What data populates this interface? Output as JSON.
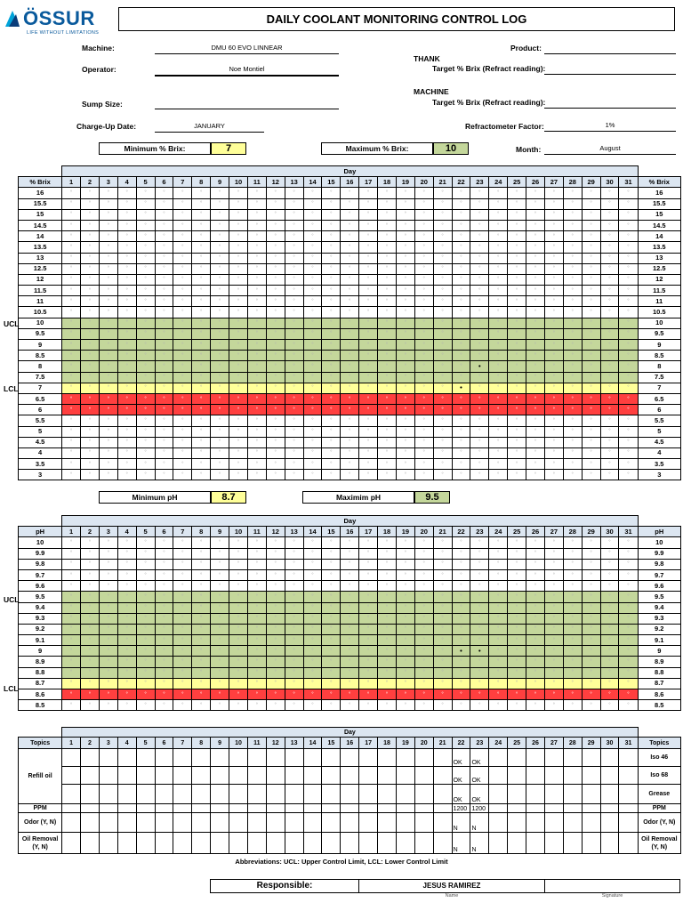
{
  "logo": {
    "name": "ÖSSUR",
    "tagline": "LIFE WITHOUT LIMITATIONS"
  },
  "title": "DAILY COOLANT MONITORING CONTROL LOG",
  "header": {
    "machine_label": "Machine:",
    "machine_value": "DMU 60 EVO LINNEAR",
    "operator_label": "Operator:",
    "operator_value": "Noe Montiel",
    "sump_label": "Sump Size:",
    "sump_value": "",
    "charge_label": "Charge-Up Date:",
    "charge_value": "JANUARY",
    "product_label": "Product:",
    "product_value": "",
    "thank_label": "THANK",
    "target1_label": "Target % Brix (Refract reading):",
    "target1_value": "",
    "machine2_label": "MACHINE",
    "target2_label": "Target % Brix (Refract reading):",
    "target2_value": "",
    "refract_label": "Refractometer Factor:",
    "refract_value": "1%",
    "min_brix_label": "Minimum % Brix:",
    "min_brix_value": "7",
    "max_brix_label": "Maximum % Brix:",
    "max_brix_value": "10",
    "month_label": "Month:",
    "month_value": "August",
    "min_ph_label": "Minimum pH",
    "min_ph_value": "8.7",
    "max_ph_label": "Maximim pH",
    "max_ph_value": "9.5"
  },
  "day_label": "Day",
  "days": [
    "1",
    "2",
    "3",
    "4",
    "5",
    "6",
    "7",
    "8",
    "9",
    "10",
    "11",
    "12",
    "13",
    "14",
    "15",
    "16",
    "17",
    "18",
    "19",
    "20",
    "21",
    "22",
    "23",
    "24",
    "25",
    "26",
    "27",
    "28",
    "29",
    "30",
    "31"
  ],
  "cell_symbol": "°",
  "mark_symbol": "•",
  "ucl": "UCL",
  "lcl": "LCL",
  "brix": {
    "header": "% Brix",
    "rows": [
      "16",
      "15.5",
      "15",
      "14.5",
      "14",
      "13.5",
      "13",
      "12.5",
      "12",
      "11.5",
      "11",
      "10.5",
      "10",
      "9.5",
      "9",
      "8.5",
      "8",
      "7.5",
      "7",
      "6.5",
      "6",
      "5.5",
      "5",
      "4.5",
      "4",
      "3.5",
      "3"
    ],
    "marks": [
      {
        "row": "8",
        "day": "23"
      },
      {
        "row": "7",
        "day": "22"
      }
    ]
  },
  "ph": {
    "header": "pH",
    "rows": [
      "10",
      "9.9",
      "9.8",
      "9.7",
      "9.6",
      "9.5",
      "9.4",
      "9.3",
      "9.2",
      "9.1",
      "9",
      "8.9",
      "8.8",
      "8.7",
      "8.6",
      "8.5"
    ],
    "marks": [
      {
        "row": "9",
        "day": "22"
      },
      {
        "row": "9",
        "day": "23"
      }
    ]
  },
  "topics": {
    "header": "Topics",
    "refill_label": "Refill oil",
    "ppm_label": "PPM",
    "odor_label": "Odor (Y, N)",
    "removal_label": "Oil Removal (Y, N)",
    "right_labels": [
      "Iso 46",
      "Iso 68",
      "Grease",
      "PPM",
      "Odor (Y, N)",
      "Oil Removal (Y, N)"
    ],
    "day22": [
      "OK",
      "OK",
      "OK",
      "1200",
      "N",
      "N"
    ],
    "day23": [
      "OK",
      "OK",
      "OK",
      "1200",
      "N",
      "N"
    ]
  },
  "abbreviations": "Abbreviations: UCL: Upper Control Limit, LCL: Lower Control Limit",
  "responsible_label": "Responsible:",
  "responsible_name": "JESUS RAMIREZ",
  "name_caption": "Name",
  "signature_caption": "Signature"
}
